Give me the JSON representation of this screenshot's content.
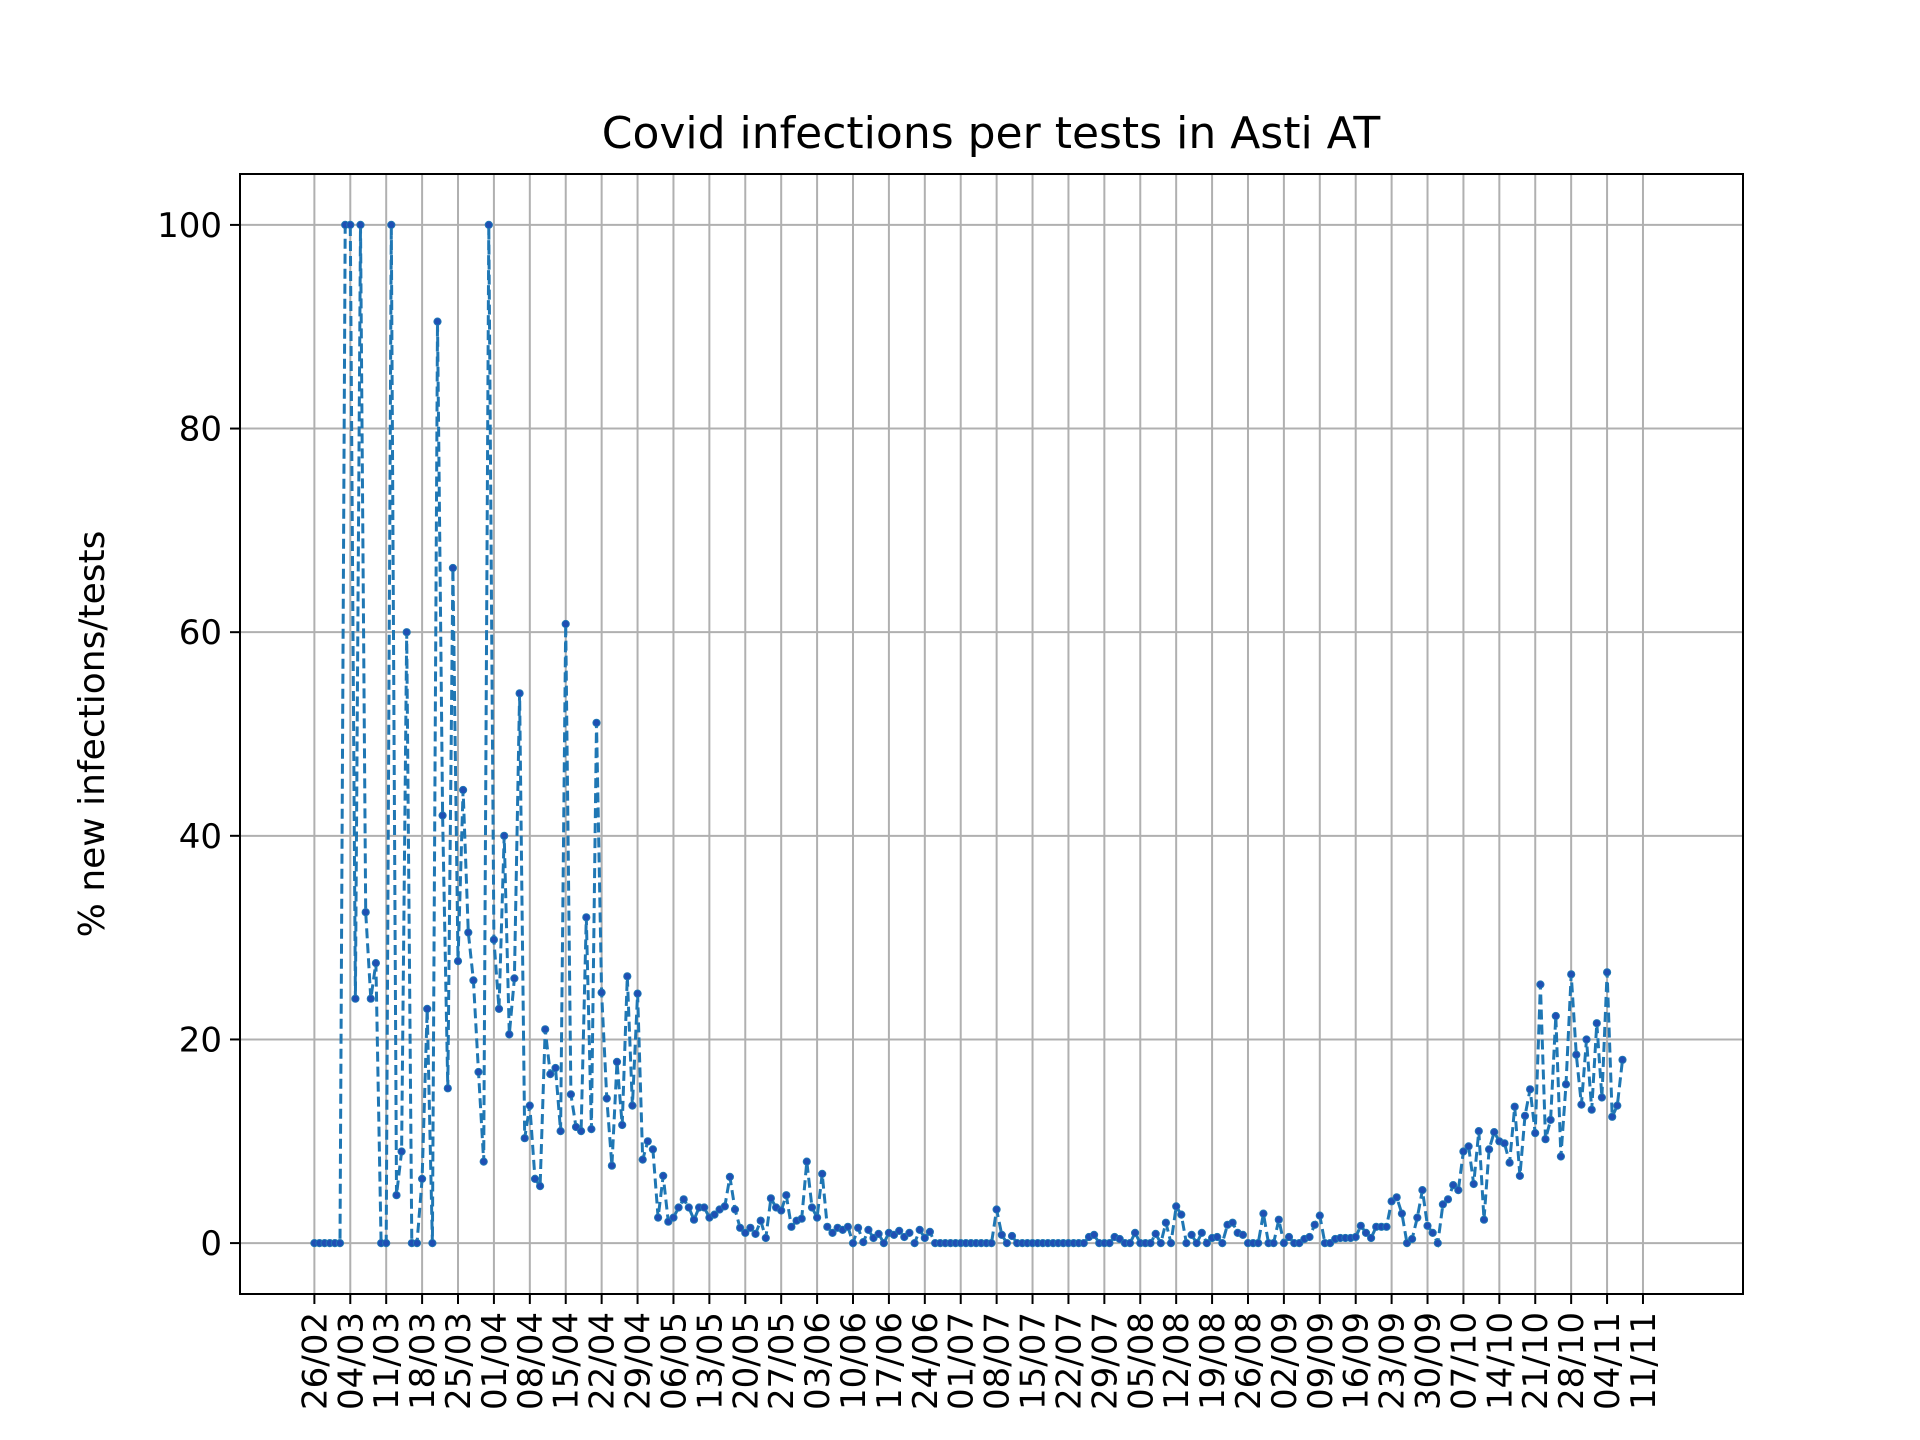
{
  "chart_data": {
    "type": "line",
    "title": "Covid infections per tests in Asti AT",
    "xlabel": "",
    "ylabel": "% new infections/tests",
    "ylim": [
      -5,
      105
    ],
    "y_ticks": [
      0,
      20,
      40,
      60,
      80,
      100
    ],
    "grid": true,
    "line_style": "dashed",
    "marker": "dot",
    "colors": {
      "line": "#1f77b4",
      "marker": "#1f4fb4"
    },
    "x_start": "2020-02-26",
    "x_end": "2020-11-16",
    "x_ticks": [
      {
        "date": "2020-02-26",
        "label": "26/02"
      },
      {
        "date": "2020-03-04",
        "label": "04/03"
      },
      {
        "date": "2020-03-11",
        "label": "11/03"
      },
      {
        "date": "2020-03-18",
        "label": "18/03"
      },
      {
        "date": "2020-03-25",
        "label": "25/03"
      },
      {
        "date": "2020-04-01",
        "label": "01/04"
      },
      {
        "date": "2020-04-08",
        "label": "08/04"
      },
      {
        "date": "2020-04-15",
        "label": "15/04"
      },
      {
        "date": "2020-04-22",
        "label": "22/04"
      },
      {
        "date": "2020-04-29",
        "label": "29/04"
      },
      {
        "date": "2020-05-06",
        "label": "06/05"
      },
      {
        "date": "2020-05-13",
        "label": "13/05"
      },
      {
        "date": "2020-05-20",
        "label": "20/05"
      },
      {
        "date": "2020-05-27",
        "label": "27/05"
      },
      {
        "date": "2020-06-03",
        "label": "03/06"
      },
      {
        "date": "2020-06-10",
        "label": "10/06"
      },
      {
        "date": "2020-06-17",
        "label": "17/06"
      },
      {
        "date": "2020-06-24",
        "label": "24/06"
      },
      {
        "date": "2020-07-01",
        "label": "01/07"
      },
      {
        "date": "2020-07-08",
        "label": "08/07"
      },
      {
        "date": "2020-07-15",
        "label": "15/07"
      },
      {
        "date": "2020-07-22",
        "label": "22/07"
      },
      {
        "date": "2020-07-29",
        "label": "29/07"
      },
      {
        "date": "2020-08-05",
        "label": "05/08"
      },
      {
        "date": "2020-08-12",
        "label": "12/08"
      },
      {
        "date": "2020-08-19",
        "label": "19/08"
      },
      {
        "date": "2020-08-26",
        "label": "26/08"
      },
      {
        "date": "2020-09-02",
        "label": "02/09"
      },
      {
        "date": "2020-09-09",
        "label": "09/09"
      },
      {
        "date": "2020-09-16",
        "label": "16/09"
      },
      {
        "date": "2020-09-23",
        "label": "23/09"
      },
      {
        "date": "2020-09-30",
        "label": "30/09"
      },
      {
        "date": "2020-10-07",
        "label": "07/10"
      },
      {
        "date": "2020-10-14",
        "label": "14/10"
      },
      {
        "date": "2020-10-21",
        "label": "21/10"
      },
      {
        "date": "2020-10-28",
        "label": "28/10"
      },
      {
        "date": "2020-11-04",
        "label": "04/11"
      },
      {
        "date": "2020-11-11",
        "label": "11/11"
      }
    ],
    "series": [
      {
        "name": "",
        "values": [
          0,
          0,
          0,
          0,
          0,
          0,
          100,
          100,
          24,
          100,
          32.5,
          24,
          27.5,
          0,
          0,
          100,
          4.7,
          9,
          60,
          0,
          0,
          6.3,
          23,
          0,
          90.5,
          42,
          15.2,
          66.3,
          27.7,
          44.5,
          30.5,
          25.8,
          16.8,
          8,
          100,
          29.8,
          23,
          40,
          20.5,
          26,
          54,
          10.3,
          13.5,
          6.3,
          5.6,
          21,
          16.6,
          17.2,
          11,
          60.8,
          14.6,
          11.4,
          11,
          32,
          11.2,
          51.1,
          24.6,
          14.2,
          7.6,
          17.8,
          11.6,
          26.2,
          13.5,
          24.5,
          8.2,
          10,
          9.2,
          2.5,
          6.6,
          2.1,
          2.5,
          3.5,
          4.3,
          3.5,
          2.3,
          3.5,
          3.5,
          2.5,
          2.8,
          3.3,
          3.6,
          6.5,
          3.3,
          1.5,
          1,
          1.5,
          0.9,
          2.2,
          0.5,
          4.4,
          3.5,
          3.2,
          4.7,
          1.6,
          2.2,
          2.4,
          8,
          3.5,
          2.5,
          6.8,
          1.6,
          1,
          1.5,
          1.3,
          1.6,
          0,
          1.5,
          0.1,
          1.3,
          0.5,
          0.9,
          0,
          1,
          0.8,
          1.2,
          0.6,
          1,
          0,
          1.3,
          0.5,
          1.1,
          0,
          0,
          0,
          0,
          0,
          0,
          0,
          0,
          0,
          0,
          0,
          0,
          3.3,
          0.8,
          0,
          0.7,
          0,
          0,
          0,
          0,
          0,
          0,
          0,
          0,
          0,
          0,
          0,
          0,
          0,
          0,
          0.6,
          0.8,
          0,
          0,
          0,
          0.6,
          0.4,
          0,
          0,
          1,
          0,
          0,
          0,
          0.9,
          0,
          2,
          0,
          3.6,
          2.8,
          0,
          0.8,
          0,
          1,
          0,
          0.5,
          0.6,
          0,
          1.8,
          2,
          1,
          0.8,
          0,
          0,
          0,
          2.9,
          0,
          0,
          2.3,
          0,
          0.6,
          0,
          0,
          0.4,
          0.6,
          1.8,
          2.7,
          0,
          0,
          0.4,
          0.5,
          0.5,
          0.5,
          0.6,
          1.7,
          1,
          0.5,
          1.6,
          1.6,
          1.6,
          4.1,
          4.5,
          2.9,
          0,
          0.4,
          2.5,
          5.2,
          1.7,
          1,
          0,
          3.8,
          4.3,
          5.7,
          5.2,
          9,
          9.5,
          5.8,
          11,
          2.3,
          9.2,
          10.9,
          10,
          9.8,
          7.9,
          13.4,
          6.6,
          12.5,
          15.1,
          10.8,
          25.4,
          10.2,
          12.1,
          22.3,
          8.5,
          15.6,
          26.4,
          18.5,
          13.6,
          20,
          13.1,
          21.6,
          14.3,
          26.6,
          12.4,
          13.5,
          18
        ]
      }
    ]
  }
}
